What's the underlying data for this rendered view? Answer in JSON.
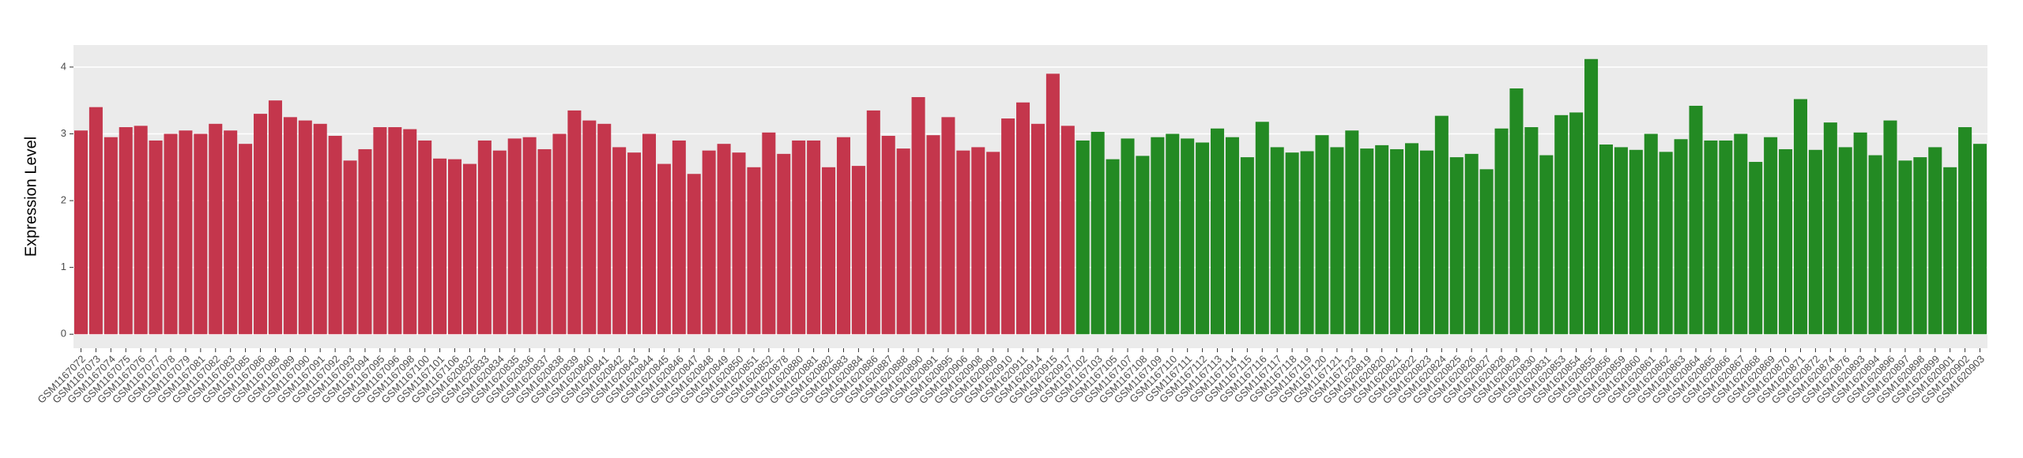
{
  "chart_data": {
    "type": "bar",
    "y_label": "Expression Level",
    "categories": [
      "GSM1167072",
      "GSM1167073",
      "GSM1167074",
      "GSM1167075",
      "GSM1167076",
      "GSM1167077",
      "GSM1167078",
      "GSM1167079",
      "GSM1167081",
      "GSM1167082",
      "GSM1167083",
      "GSM1167085",
      "GSM1167086",
      "GSM1167088",
      "GSM1167089",
      "GSM1167090",
      "GSM1167091",
      "GSM1167092",
      "GSM1167093",
      "GSM1167094",
      "GSM1167095",
      "GSM1167096",
      "GSM1167098",
      "GSM1167100",
      "GSM1167101",
      "GSM1167106",
      "GSM1620832",
      "GSM1620833",
      "GSM1620834",
      "GSM1620835",
      "GSM1620836",
      "GSM1620837",
      "GSM1620838",
      "GSM1620839",
      "GSM1620840",
      "GSM1620841",
      "GSM1620842",
      "GSM1620843",
      "GSM1620844",
      "GSM1620845",
      "GSM1620846",
      "GSM1620847",
      "GSM1620848",
      "GSM1620849",
      "GSM1620850",
      "GSM1620851",
      "GSM1620852",
      "GSM1620878",
      "GSM1620880",
      "GSM1620881",
      "GSM1620882",
      "GSM1620883",
      "GSM1620884",
      "GSM1620886",
      "GSM1620887",
      "GSM1620888",
      "GSM1620890",
      "GSM1620891",
      "GSM1620895",
      "GSM1620906",
      "GSM1620908",
      "GSM1620909",
      "GSM1620910",
      "GSM1620911",
      "GSM1620914",
      "GSM1620915",
      "GSM1620917",
      "GSM1167102",
      "GSM1167103",
      "GSM1167105",
      "GSM1167107",
      "GSM1167108",
      "GSM1167109",
      "GSM1167110",
      "GSM1167111",
      "GSM1167112",
      "GSM1167113",
      "GSM1167114",
      "GSM1167115",
      "GSM1167116",
      "GSM1167117",
      "GSM1167118",
      "GSM1167119",
      "GSM1167120",
      "GSM1167121",
      "GSM1167123",
      "GSM1620819",
      "GSM1620820",
      "GSM1620821",
      "GSM1620822",
      "GSM1620823",
      "GSM1620824",
      "GSM1620825",
      "GSM1620826",
      "GSM1620827",
      "GSM1620828",
      "GSM1620829",
      "GSM1620830",
      "GSM1620831",
      "GSM1620853",
      "GSM1620854",
      "GSM1620855",
      "GSM1620856",
      "GSM1620859",
      "GSM1620860",
      "GSM1620861",
      "GSM1620862",
      "GSM1620863",
      "GSM1620864",
      "GSM1620865",
      "GSM1620866",
      "GSM1620867",
      "GSM1620868",
      "GSM1620869",
      "GSM1620870",
      "GSM1620871",
      "GSM1620872",
      "GSM1620874",
      "GSM1620876",
      "GSM1620893",
      "GSM1620894",
      "GSM1620896",
      "GSM1620897",
      "GSM1620898",
      "GSM1620899",
      "GSM1620901",
      "GSM1620902",
      "GSM1620903"
    ],
    "values": [
      3.05,
      3.4,
      2.95,
      3.1,
      3.12,
      2.9,
      3.0,
      3.05,
      3.0,
      3.15,
      3.05,
      2.85,
      3.3,
      3.5,
      3.25,
      3.2,
      3.15,
      2.97,
      2.6,
      2.77,
      3.1,
      3.1,
      3.07,
      2.9,
      2.63,
      2.62,
      2.55,
      2.9,
      2.75,
      2.93,
      2.95,
      2.77,
      3.0,
      3.35,
      3.2,
      3.15,
      2.8,
      2.72,
      3.0,
      2.55,
      2.9,
      2.4,
      2.75,
      2.85,
      2.72,
      2.5,
      3.02,
      2.7,
      2.9,
      2.9,
      2.5,
      2.95,
      2.52,
      3.35,
      2.97,
      2.78,
      3.55,
      2.98,
      3.25,
      2.75,
      2.8,
      2.73,
      3.23,
      3.47,
      3.15,
      3.9,
      3.12,
      2.9,
      3.03,
      2.62,
      2.93,
      2.67,
      2.95,
      3.0,
      2.93,
      2.87,
      3.08,
      2.95,
      2.65,
      3.18,
      2.8,
      2.72,
      2.74,
      2.98,
      2.8,
      3.05,
      2.78,
      2.83,
      2.77,
      2.86,
      2.75,
      3.27,
      2.65,
      2.7,
      2.47,
      3.08,
      3.68,
      3.1,
      2.68,
      3.28,
      3.32,
      4.12,
      2.84,
      2.8,
      2.76,
      3.0,
      2.73,
      2.92,
      3.42,
      2.9,
      2.9,
      3.0,
      2.58,
      2.95,
      2.77,
      3.52,
      2.76,
      3.17,
      2.8,
      3.02,
      2.68,
      3.2,
      2.6,
      2.65,
      2.8,
      2.5,
      3.1,
      2.85
    ],
    "colors": [
      "#c4364c",
      "#c4364c",
      "#c4364c",
      "#c4364c",
      "#c4364c",
      "#c4364c",
      "#c4364c",
      "#c4364c",
      "#c4364c",
      "#c4364c",
      "#c4364c",
      "#c4364c",
      "#c4364c",
      "#c4364c",
      "#c4364c",
      "#c4364c",
      "#c4364c",
      "#c4364c",
      "#c4364c",
      "#c4364c",
      "#c4364c",
      "#c4364c",
      "#c4364c",
      "#c4364c",
      "#c4364c",
      "#c4364c",
      "#c4364c",
      "#c4364c",
      "#c4364c",
      "#c4364c",
      "#c4364c",
      "#c4364c",
      "#c4364c",
      "#c4364c",
      "#c4364c",
      "#c4364c",
      "#c4364c",
      "#c4364c",
      "#c4364c",
      "#c4364c",
      "#c4364c",
      "#c4364c",
      "#c4364c",
      "#c4364c",
      "#c4364c",
      "#c4364c",
      "#c4364c",
      "#c4364c",
      "#c4364c",
      "#c4364c",
      "#c4364c",
      "#c4364c",
      "#c4364c",
      "#c4364c",
      "#c4364c",
      "#c4364c",
      "#c4364c",
      "#c4364c",
      "#c4364c",
      "#c4364c",
      "#c4364c",
      "#c4364c",
      "#c4364c",
      "#c4364c",
      "#c4364c",
      "#c4364c",
      "#c4364c",
      "#238a23",
      "#238a23",
      "#238a23",
      "#238a23",
      "#238a23",
      "#238a23",
      "#238a23",
      "#238a23",
      "#238a23",
      "#238a23",
      "#238a23",
      "#238a23",
      "#238a23",
      "#238a23",
      "#238a23",
      "#238a23",
      "#238a23",
      "#238a23",
      "#238a23",
      "#238a23",
      "#238a23",
      "#238a23",
      "#238a23",
      "#238a23",
      "#238a23",
      "#238a23",
      "#238a23",
      "#238a23",
      "#238a23",
      "#238a23",
      "#238a23",
      "#238a23",
      "#238a23",
      "#238a23",
      "#238a23",
      "#238a23",
      "#238a23",
      "#238a23",
      "#238a23",
      "#238a23",
      "#238a23",
      "#238a23",
      "#238a23",
      "#238a23",
      "#238a23",
      "#238a23",
      "#238a23",
      "#238a23",
      "#238a23",
      "#238a23",
      "#238a23",
      "#238a23",
      "#238a23",
      "#238a23",
      "#238a23",
      "#238a23",
      "#238a23",
      "#238a23",
      "#238a23",
      "#238a23",
      "#238a23"
    ],
    "ylim": [
      -0.21,
      4.33
    ],
    "yticks": [
      0,
      1,
      2,
      3,
      4
    ],
    "grid": true
  }
}
